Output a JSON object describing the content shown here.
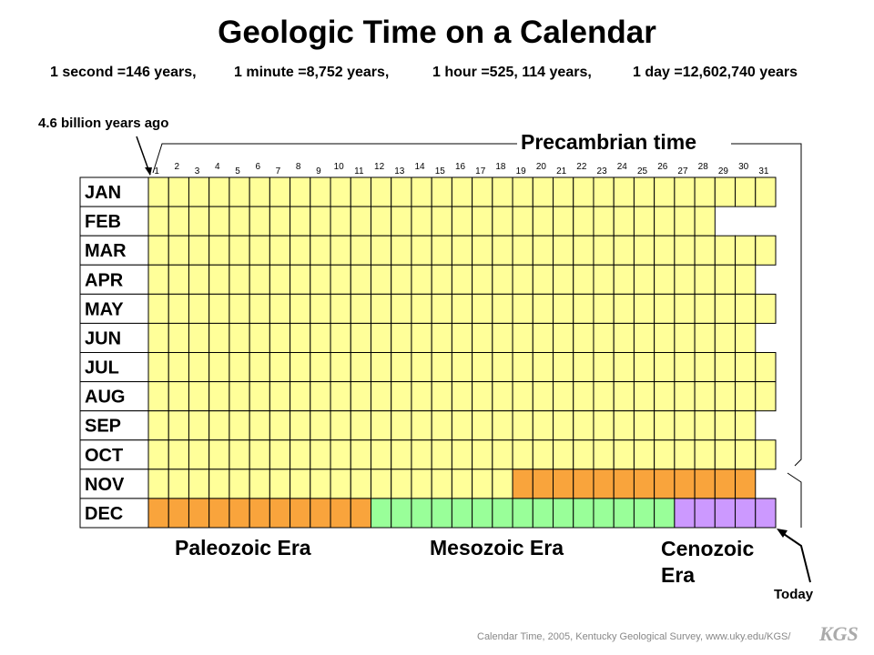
{
  "title": "Geologic Time on a Calendar",
  "subtitle": [
    "1 second =146 years,",
    "1 minute =8,752 years,",
    "1 hour =525, 114 years,",
    "1 day =12,602,740 years"
  ],
  "origin_label": "4.6 billion years ago",
  "precambrian_label": "Precambrian time",
  "days": [
    1,
    2,
    3,
    4,
    5,
    6,
    7,
    8,
    9,
    10,
    11,
    12,
    13,
    14,
    15,
    16,
    17,
    18,
    19,
    20,
    21,
    22,
    23,
    24,
    25,
    26,
    27,
    28,
    29,
    30,
    31
  ],
  "months": [
    "JAN",
    "FEB",
    "MAR",
    "APR",
    "MAY",
    "JUN",
    "JUL",
    "AUG",
    "SEP",
    "OCT",
    "NOV",
    "DEC"
  ],
  "eras": [
    "Paleozoic Era",
    "Mesozoic Era",
    "Cenozoic Era"
  ],
  "today_label": "Today",
  "footer": "Calendar Time, 2005, Kentucky Geological Survey, www.uky.edu/KGS/",
  "logo": "KGS"
}
